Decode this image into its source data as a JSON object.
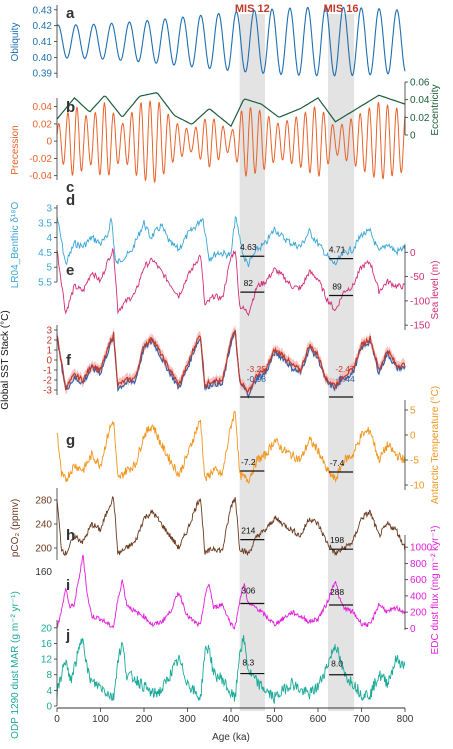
{
  "figure": {
    "xaxis": {
      "label": "Age (ka)",
      "ticks": [
        0,
        100,
        200,
        300,
        400,
        500,
        600,
        700,
        800
      ],
      "range": [
        0,
        800
      ]
    },
    "shaded_intervals": [
      {
        "label": "MIS 12",
        "range": [
          420,
          478
        ]
      },
      {
        "label": "MIS 16",
        "range": [
          623,
          683
        ]
      }
    ],
    "colors": {
      "shade": "#e3e3e3",
      "mis_label": "#c0392b",
      "obliquity": "#1f6fb2",
      "eccentricity": "#1b5e3a",
      "precession": "#e8632a",
      "benthic": "#3aa6d6",
      "sealevel": "#d12f78",
      "sst": "#c0392b",
      "sst_alt": "#2d5fa3",
      "sst_band": "#f4b3b3",
      "antarctic": "#f0961e",
      "co2": "#6b3a1f",
      "dust_flux": "#e21ddb",
      "odp_dust": "#1aaa98"
    }
  },
  "chart_data": [
    {
      "panel": "a",
      "type": "line",
      "ylabel": "Obliquity",
      "yticks": [
        "0.43",
        "0.42",
        "0.41",
        "0.40",
        "0.39"
      ],
      "ylim": [
        0.387,
        0.433
      ],
      "series": [
        {
          "color": "#1f6fb2",
          "period_ka": 41,
          "mean": 0.41,
          "amplitude": 0.016
        }
      ]
    },
    {
      "panel": "b/c",
      "type": "line",
      "ylabel_left": "Precession",
      "ylabel_right": "Eccentricity",
      "yticks_left": [
        "0.04",
        "0.02",
        "0",
        "-0.02",
        "-0.04"
      ],
      "yticks_right": [
        "0.06",
        "0.04",
        "0.02",
        "0"
      ],
      "ylim": [
        -0.045,
        0.05
      ],
      "eccentricity_envelope": {
        "x": [
          0,
          40,
          75,
          110,
          150,
          190,
          230,
          270,
          310,
          350,
          400,
          430,
          470,
          510,
          560,
          600,
          640,
          690,
          740,
          800
        ],
        "y": [
          0.018,
          0.042,
          0.026,
          0.045,
          0.02,
          0.044,
          0.048,
          0.022,
          0.012,
          0.03,
          0.01,
          0.041,
          0.035,
          0.02,
          0.03,
          0.042,
          0.015,
          0.03,
          0.045,
          0.035
        ]
      }
    },
    {
      "panel": "d",
      "type": "line",
      "ylabel": "LR04_Benthic δ¹⁸O",
      "yticks": [
        "3",
        "3.5",
        "4",
        "4.5",
        "5",
        "5.5"
      ],
      "ylim": [
        2.9,
        5.5
      ],
      "inverted": true,
      "series": [
        {
          "x": [
            0,
            20,
            40,
            60,
            80,
            100,
            115,
            125,
            135,
            150,
            170,
            200,
            215,
            240,
            260,
            280,
            300,
            320,
            335,
            350,
            370,
            400,
            410,
            430,
            440,
            460,
            480,
            500,
            520,
            540,
            560,
            580,
            600,
            620,
            630,
            640,
            660,
            680,
            700,
            720,
            740,
            760,
            780,
            800
          ],
          "y": [
            3.3,
            4.9,
            4.2,
            4.3,
            4.0,
            4.2,
            4.0,
            3.3,
            4.9,
            4.7,
            4.5,
            3.5,
            4.0,
            3.6,
            4.2,
            4.4,
            3.9,
            3.6,
            3.3,
            4.7,
            4.5,
            4.6,
            3.3,
            4.7,
            4.9,
            4.4,
            4.2,
            3.7,
            4.0,
            4.2,
            4.3,
            3.8,
            4.2,
            4.6,
            4.8,
            4.9,
            4.5,
            4.4,
            3.9,
            3.8,
            4.5,
            4.2,
            4.5,
            4.3
          ]
        }
      ],
      "annotations": [
        {
          "text": "4.63",
          "x": 449,
          "y": 4.63
        },
        {
          "text": "4.71",
          "x": 653,
          "y": 4.71
        }
      ]
    },
    {
      "panel": "e",
      "type": "line",
      "ylabel": "Sea level (m)",
      "yticks": [
        "0",
        "-50",
        "-100",
        "-150"
      ],
      "ylim": [
        -160,
        15
      ],
      "series": [
        {
          "x": [
            0,
            20,
            40,
            60,
            80,
            100,
            120,
            130,
            140,
            160,
            180,
            200,
            220,
            240,
            260,
            280,
            300,
            320,
            330,
            340,
            360,
            380,
            400,
            410,
            420,
            440,
            460,
            480,
            500,
            520,
            540,
            560,
            580,
            600,
            620,
            640,
            660,
            680,
            700,
            720,
            740,
            760,
            780,
            800
          ],
          "y": [
            5,
            -125,
            -70,
            -80,
            -40,
            -60,
            -10,
            5,
            -120,
            -100,
            -85,
            -30,
            -15,
            -40,
            -65,
            -90,
            -50,
            -20,
            -5,
            -110,
            -90,
            -95,
            -10,
            5,
            -110,
            -125,
            -70,
            -60,
            -35,
            -50,
            -70,
            -75,
            -40,
            -55,
            -95,
            -120,
            -80,
            -70,
            -30,
            -20,
            -80,
            -60,
            -70,
            -70
          ]
        }
      ],
      "annotations": [
        {
          "text": "82",
          "x": 449,
          "y": -82
        },
        {
          "text": "89",
          "x": 653,
          "y": -89
        }
      ]
    },
    {
      "panel": "f",
      "type": "line",
      "ylabel": "Global SST Stack (°C)",
      "yticks": [
        "3",
        "2",
        "1",
        "0",
        "-1",
        "-2",
        "-3"
      ],
      "ylim": [
        -3.5,
        3.5
      ],
      "series": [
        {
          "color": "#c0392b",
          "x": [
            0,
            20,
            40,
            60,
            80,
            100,
            120,
            130,
            140,
            160,
            180,
            200,
            220,
            240,
            260,
            280,
            300,
            320,
            330,
            340,
            360,
            380,
            400,
            410,
            420,
            440,
            460,
            480,
            500,
            520,
            540,
            560,
            580,
            600,
            620,
            640,
            660,
            680,
            700,
            720,
            740,
            760,
            780,
            800
          ],
          "y": [
            2.5,
            -2.8,
            -1.5,
            -2.0,
            -0.5,
            -1.0,
            1.5,
            2.6,
            -2.5,
            -2.0,
            -1.8,
            1.5,
            2.2,
            0.5,
            -1.0,
            -2.5,
            -0.5,
            1.8,
            2.5,
            -2.5,
            -2.0,
            -2.2,
            2.0,
            3.0,
            -2.0,
            -3.2,
            -1.5,
            -1.0,
            1.0,
            0.5,
            -0.5,
            -1.0,
            1.5,
            0.5,
            -2.0,
            -2.5,
            -1.5,
            -1.0,
            1.5,
            2.2,
            -1.0,
            1.0,
            -0.5,
            -0.5
          ]
        },
        {
          "color": "#2d5fa3",
          "x": [
            0,
            20,
            40,
            60,
            80,
            100,
            120,
            130,
            140,
            160,
            180,
            200,
            220,
            240,
            260,
            280,
            300,
            320,
            330,
            340,
            360,
            380,
            400,
            410,
            420,
            440,
            460,
            480,
            500,
            520,
            540,
            560,
            580,
            600,
            620,
            640,
            660,
            680,
            700,
            720,
            740,
            760,
            780,
            800
          ],
          "y": [
            2.2,
            -3.0,
            -1.8,
            -2.3,
            -0.8,
            -1.3,
            1.2,
            2.3,
            -2.8,
            -2.3,
            -2.1,
            1.2,
            1.9,
            0.2,
            -1.3,
            -2.8,
            -0.8,
            1.5,
            2.2,
            -2.8,
            -2.3,
            -2.5,
            1.7,
            2.7,
            -2.3,
            -3.4,
            -1.8,
            -1.3,
            0.7,
            0.2,
            -0.8,
            -1.3,
            1.2,
            0.2,
            -2.3,
            -2.8,
            -1.8,
            -1.3,
            1.2,
            1.9,
            -1.3,
            0.7,
            -0.8,
            -0.8
          ]
        }
      ],
      "annotations": [
        {
          "text": "-3.25",
          "x": 449,
          "y": -3.25,
          "color": "#c0392b"
        },
        {
          "text": "-0.98",
          "x": 449,
          "y": -0.98,
          "color": "#2d5fa3"
        },
        {
          "text": "-2.47",
          "x": 653,
          "y": -2.47,
          "color": "#c0392b"
        },
        {
          "text": "-0.44",
          "x": 653,
          "y": -0.44,
          "color": "#2d5fa3"
        }
      ]
    },
    {
      "panel": "g",
      "type": "line",
      "ylabel": "Antarctic Temperature (°C)",
      "yticks": [
        "5",
        "0",
        "-5",
        "-10"
      ],
      "ylim": [
        -11,
        7
      ],
      "series": [
        {
          "x": [
            0,
            10,
            20,
            40,
            60,
            80,
            100,
            120,
            130,
            140,
            160,
            180,
            200,
            220,
            240,
            260,
            280,
            300,
            320,
            330,
            340,
            360,
            380,
            400,
            410,
            420,
            440,
            460,
            480,
            500,
            520,
            540,
            560,
            580,
            600,
            620,
            640,
            660,
            680,
            700,
            720,
            740,
            760,
            780,
            800
          ],
          "y": [
            1,
            -8,
            -9,
            -6,
            -7,
            -4,
            -6,
            1,
            3,
            -9,
            -7,
            -6,
            0,
            2,
            -2,
            -5,
            -8,
            -4,
            1,
            3,
            -9,
            -7,
            -8,
            2,
            5,
            -8,
            -9,
            -5,
            -4,
            -1,
            -3,
            -4,
            -5,
            -1,
            -3,
            -7,
            -9,
            -5,
            -4,
            0,
            1,
            -5,
            -2,
            -4,
            -5
          ]
        }
      ],
      "annotations": [
        {
          "text": "-7.2",
          "x": 449,
          "y": -7.2
        },
        {
          "text": "-7.4",
          "x": 653,
          "y": -7.4
        }
      ]
    },
    {
      "panel": "h",
      "type": "line",
      "ylabel": "pCO₂ (ppmv)",
      "yticks": [
        "280",
        "240",
        "200"
      ],
      "ylim": [
        180,
        300
      ],
      "series": [
        {
          "x": [
            0,
            10,
            20,
            40,
            60,
            80,
            100,
            120,
            130,
            140,
            160,
            180,
            200,
            220,
            240,
            260,
            280,
            300,
            320,
            330,
            340,
            360,
            380,
            400,
            410,
            420,
            440,
            460,
            480,
            500,
            520,
            540,
            560,
            580,
            600,
            620,
            640,
            660,
            680,
            700,
            720,
            740,
            760,
            780,
            800
          ],
          "y": [
            280,
            200,
            190,
            220,
            210,
            240,
            230,
            270,
            285,
            190,
            200,
            210,
            250,
            260,
            240,
            220,
            200,
            230,
            270,
            285,
            190,
            200,
            195,
            270,
            285,
            200,
            190,
            220,
            230,
            250,
            240,
            230,
            220,
            250,
            240,
            210,
            190,
            200,
            210,
            250,
            260,
            220,
            240,
            230,
            200
          ]
        }
      ],
      "annotations": [
        {
          "text": "214",
          "x": 449,
          "y": 214
        },
        {
          "text": "198",
          "x": 653,
          "y": 198
        }
      ]
    },
    {
      "panel": "i",
      "type": "line",
      "ylabel": "EDC dust flux (mg m⁻² kyr⁻¹)",
      "yticks": [
        "1000",
        "800",
        "600",
        "400",
        "200",
        "0"
      ],
      "yticks_left": [
        "160"
      ],
      "ylim": [
        -20,
        1150
      ],
      "series": [
        {
          "x": [
            0,
            10,
            20,
            30,
            40,
            60,
            70,
            80,
            100,
            120,
            130,
            140,
            150,
            160,
            180,
            200,
            220,
            240,
            260,
            280,
            300,
            320,
            330,
            340,
            350,
            360,
            380,
            400,
            410,
            420,
            430,
            440,
            460,
            480,
            500,
            520,
            540,
            560,
            580,
            600,
            620,
            640,
            650,
            660,
            680,
            700,
            720,
            740,
            760,
            780,
            800
          ],
          "y": [
            20,
            200,
            500,
            250,
            300,
            900,
            400,
            150,
            120,
            40,
            20,
            350,
            600,
            300,
            200,
            150,
            40,
            80,
            200,
            450,
            150,
            60,
            30,
            400,
            550,
            250,
            300,
            50,
            20,
            350,
            550,
            300,
            250,
            150,
            50,
            120,
            200,
            150,
            80,
            120,
            300,
            600,
            350,
            250,
            200,
            60,
            40,
            300,
            200,
            250,
            200
          ]
        }
      ],
      "annotations": [
        {
          "text": "306",
          "x": 449,
          "y": 306
        },
        {
          "text": "288",
          "x": 653,
          "y": 288
        }
      ]
    },
    {
      "panel": "j",
      "type": "line",
      "ylabel": "ODP 1290 dust MAR (g m⁻² yr⁻¹)",
      "yticks": [
        "20",
        "16",
        "12",
        "8",
        "4",
        "0"
      ],
      "ylim": [
        0,
        22
      ],
      "series": [
        {
          "x": [
            0,
            10,
            20,
            30,
            40,
            60,
            70,
            80,
            100,
            120,
            130,
            140,
            150,
            160,
            180,
            200,
            220,
            240,
            260,
            280,
            300,
            320,
            330,
            340,
            350,
            360,
            380,
            400,
            410,
            420,
            430,
            440,
            460,
            480,
            500,
            520,
            540,
            560,
            580,
            600,
            620,
            640,
            650,
            660,
            680,
            700,
            720,
            740,
            760,
            780,
            800
          ],
          "y": [
            3,
            8,
            12,
            6,
            10,
            18,
            9,
            6,
            5,
            3,
            2,
            12,
            16,
            8,
            7,
            5,
            3,
            4,
            8,
            12,
            6,
            3,
            2,
            14,
            15,
            8,
            7,
            3,
            2,
            14,
            17,
            9,
            6,
            4,
            2,
            4,
            6,
            4,
            3,
            5,
            10,
            16,
            12,
            8,
            6,
            3,
            3,
            8,
            6,
            12,
            10
          ]
        }
      ],
      "annotations": [
        {
          "text": "8.3",
          "x": 449,
          "y": 8.3
        },
        {
          "text": "8.0",
          "x": 653,
          "y": 8.0
        }
      ]
    }
  ],
  "panel_letters": [
    "a",
    "b",
    "c",
    "d",
    "e",
    "f",
    "g",
    "h",
    "i",
    "j"
  ]
}
